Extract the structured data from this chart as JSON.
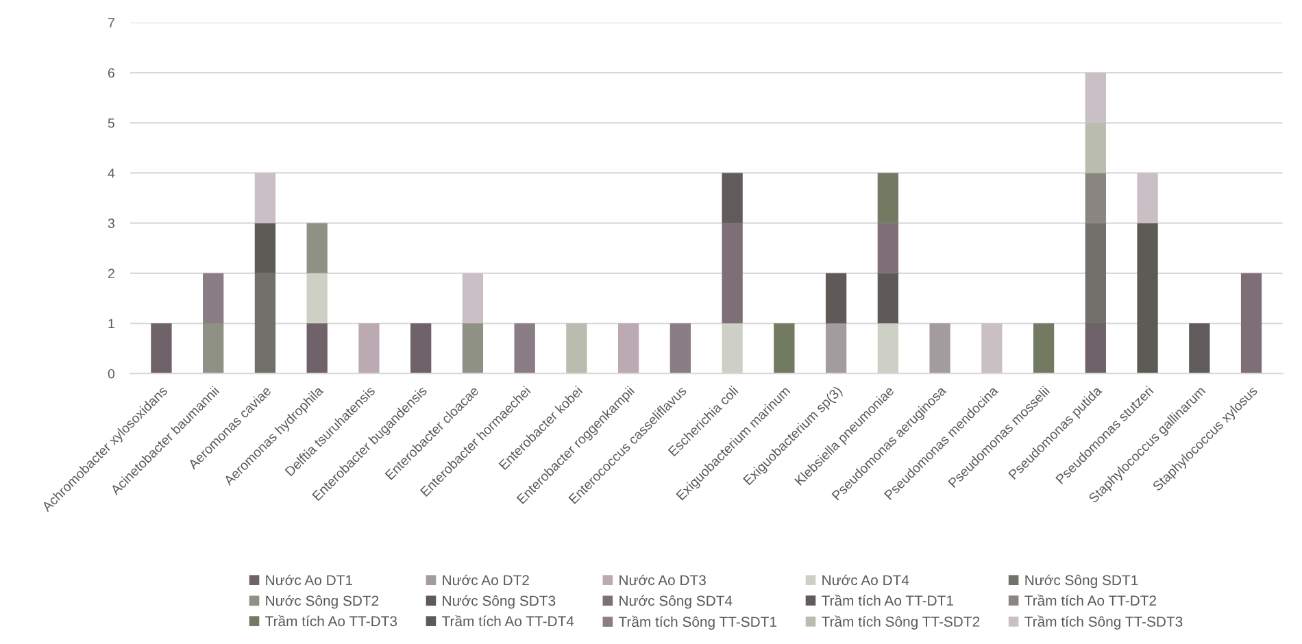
{
  "chart_data": {
    "type": "bar",
    "stacked": true,
    "grid": "y",
    "legend": "bottom",
    "ylim": [
      0,
      7
    ],
    "yticks": [
      0,
      1,
      2,
      3,
      4,
      5,
      6,
      7
    ],
    "categories": [
      "Achromobacter xylosoxidans",
      "Acinetobacter baumannii",
      "Aeromonas caviae",
      "Aeromonas hydrophila",
      "Delftia tsuruhatensis",
      "Enterobacter bugandensis",
      "Enterobacter cloacae",
      "Enterobacter hormaechei",
      "Enterobacter kobei",
      "Enterobacter roggenkampii",
      "Enterococcus casseliflavus",
      "Escherichia coli",
      "Exiguobacterium marinum",
      "Exiguobacterium sp(3)",
      "Klebsiella pneumoniae",
      "Pseudomonas aeruginosa",
      "Pseudomonas mendocina",
      "Pseudomonas mosselii",
      "Pseudomonas putida",
      "Pseudomonas stutzeri",
      "Staphylococcus gallinarum",
      "Staphylococcus xylosus"
    ],
    "series": [
      {
        "name": "Nước Ao DT1",
        "color": "#6f6268",
        "values": [
          1,
          null,
          null,
          1,
          null,
          1,
          null,
          null,
          null,
          null,
          null,
          null,
          null,
          null,
          null,
          null,
          null,
          null,
          1,
          null,
          null,
          null
        ]
      },
      {
        "name": "Nước Ao DT2",
        "color": "#a39b9e",
        "values": [
          null,
          null,
          null,
          null,
          null,
          null,
          null,
          null,
          null,
          null,
          null,
          null,
          null,
          1,
          null,
          1,
          null,
          null,
          null,
          null,
          null,
          null
        ]
      },
      {
        "name": "Nước Ao DT3",
        "color": "#bcaab3",
        "values": [
          null,
          null,
          null,
          null,
          1,
          null,
          null,
          null,
          null,
          1,
          null,
          null,
          null,
          null,
          null,
          null,
          null,
          null,
          null,
          null,
          null,
          null
        ]
      },
      {
        "name": "Nước Ao DT4",
        "color": "#cfd0c5",
        "values": [
          null,
          null,
          null,
          1,
          null,
          null,
          null,
          null,
          null,
          null,
          null,
          1,
          null,
          null,
          1,
          null,
          null,
          null,
          null,
          null,
          null,
          null
        ]
      },
      {
        "name": "Nước Sông SDT1",
        "color": "#736f6b",
        "values": [
          null,
          null,
          2,
          null,
          null,
          null,
          null,
          null,
          null,
          null,
          null,
          null,
          null,
          null,
          null,
          null,
          null,
          null,
          2,
          null,
          null,
          null
        ]
      },
      {
        "name": "Nước Sông SDT2",
        "color": "#8e9184",
        "values": [
          null,
          1,
          null,
          1,
          null,
          null,
          1,
          null,
          null,
          null,
          null,
          null,
          null,
          null,
          null,
          null,
          null,
          null,
          null,
          null,
          null,
          null
        ]
      },
      {
        "name": "Nước Sông SDT3",
        "color": "#5f5a58",
        "values": [
          null,
          null,
          null,
          null,
          null,
          null,
          null,
          null,
          null,
          null,
          null,
          null,
          null,
          1,
          1,
          null,
          null,
          null,
          null,
          null,
          null,
          null
        ]
      },
      {
        "name": "Nước Sông SDT4",
        "color": "#7e6f77",
        "values": [
          null,
          null,
          null,
          null,
          null,
          null,
          null,
          null,
          null,
          null,
          null,
          2,
          null,
          null,
          1,
          null,
          null,
          null,
          null,
          null,
          null,
          2
        ]
      },
      {
        "name": "Trầm tích Ao TT-DT1",
        "color": "#615b5b",
        "values": [
          null,
          null,
          null,
          null,
          null,
          null,
          null,
          null,
          null,
          null,
          null,
          1,
          null,
          null,
          null,
          null,
          null,
          null,
          null,
          null,
          1,
          null
        ]
      },
      {
        "name": "Trầm tích Ao TT-DT2",
        "color": "#8a8580",
        "values": [
          null,
          null,
          null,
          null,
          null,
          null,
          null,
          null,
          null,
          null,
          null,
          null,
          null,
          null,
          null,
          null,
          null,
          null,
          1,
          null,
          null,
          null
        ]
      },
      {
        "name": "Trầm tích Ao TT-DT3",
        "color": "#727a62",
        "values": [
          null,
          null,
          null,
          null,
          null,
          null,
          null,
          null,
          null,
          null,
          null,
          null,
          1,
          null,
          1,
          null,
          null,
          1,
          null,
          null,
          null,
          null
        ]
      },
      {
        "name": "Trầm tích Ao TT-DT4",
        "color": "#5d5b55",
        "values": [
          null,
          null,
          1,
          null,
          null,
          null,
          null,
          null,
          null,
          null,
          null,
          null,
          null,
          null,
          null,
          null,
          null,
          null,
          null,
          3,
          null,
          null
        ]
      },
      {
        "name": "Trầm tích Sông TT-SDT1",
        "color": "#8a7d86",
        "values": [
          null,
          1,
          null,
          null,
          null,
          null,
          null,
          1,
          null,
          null,
          1,
          null,
          null,
          null,
          null,
          null,
          null,
          null,
          null,
          null,
          null,
          null
        ]
      },
      {
        "name": "Trầm tích Sông TT-SDT2",
        "color": "#b9bcae",
        "values": [
          null,
          null,
          null,
          null,
          null,
          null,
          null,
          null,
          1,
          null,
          null,
          null,
          null,
          null,
          null,
          null,
          null,
          null,
          1,
          null,
          null,
          null
        ]
      },
      {
        "name": "Trầm tích Sông TT-SDT3",
        "color": "#c9bfc4",
        "values": [
          null,
          null,
          1,
          null,
          null,
          null,
          1,
          null,
          null,
          null,
          null,
          null,
          null,
          null,
          null,
          null,
          1,
          null,
          1,
          1,
          null,
          null
        ]
      }
    ]
  }
}
